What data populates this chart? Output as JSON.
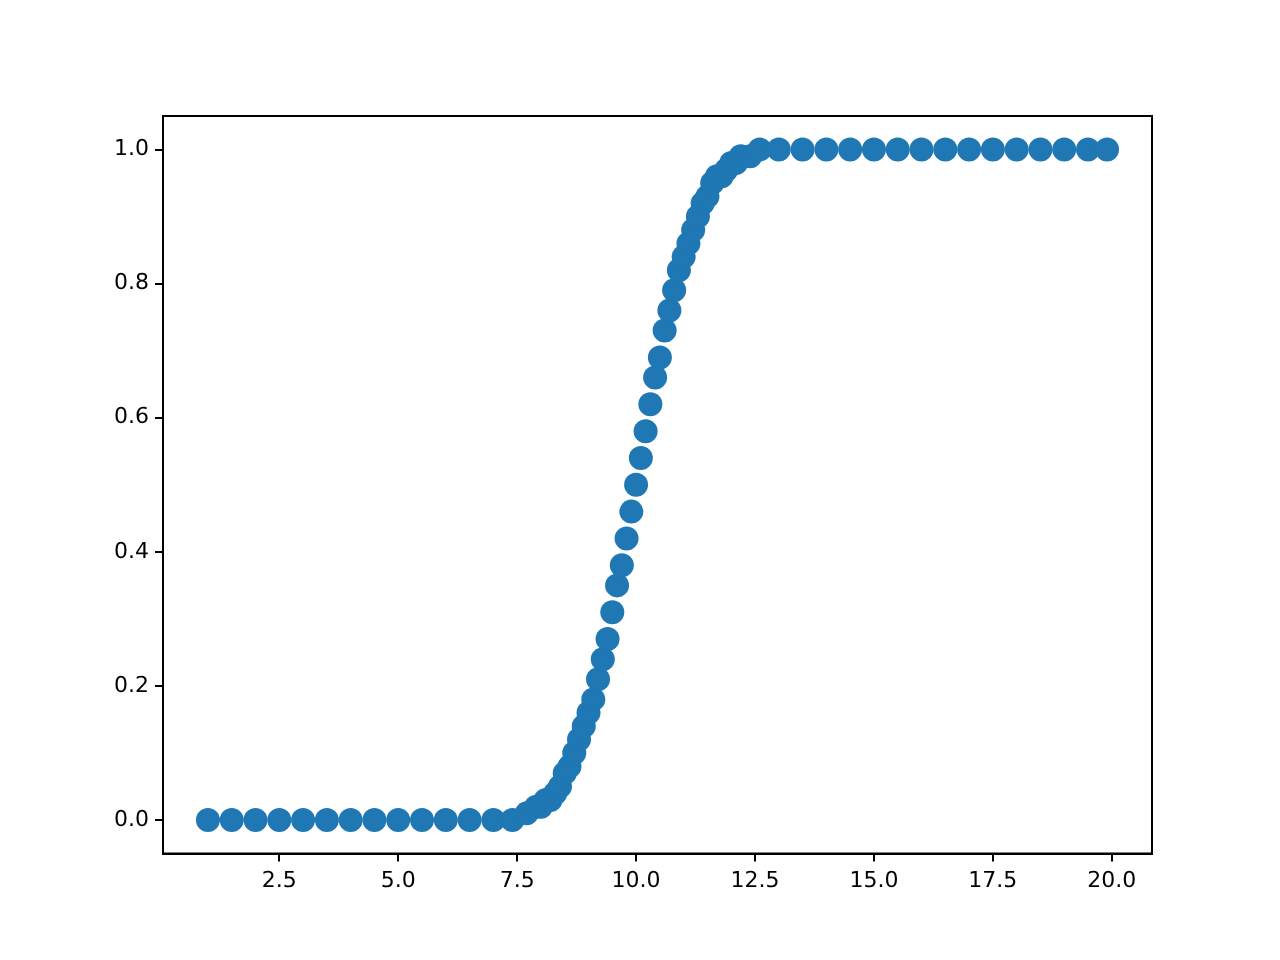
{
  "chart_data": {
    "type": "scatter",
    "color": "#1f77b4",
    "marker": "circle",
    "grid": false,
    "legend": false,
    "x": [
      1.0,
      1.5,
      2.0,
      2.5,
      3.0,
      3.5,
      4.0,
      4.5,
      5.0,
      5.5,
      6.0,
      6.5,
      7.0,
      7.4,
      7.7,
      7.9,
      8.0,
      8.1,
      8.2,
      8.3,
      8.4,
      8.5,
      8.6,
      8.7,
      8.8,
      8.9,
      9.0,
      9.1,
      9.2,
      9.3,
      9.4,
      9.5,
      9.6,
      9.7,
      9.8,
      9.9,
      10.0,
      10.1,
      10.2,
      10.3,
      10.4,
      10.5,
      10.6,
      10.7,
      10.8,
      10.9,
      11.0,
      11.1,
      11.2,
      11.3,
      11.4,
      11.5,
      11.6,
      11.7,
      11.8,
      11.9,
      12.0,
      12.1,
      12.2,
      12.4,
      12.6,
      13.0,
      13.5,
      14.0,
      14.5,
      15.0,
      15.5,
      16.0,
      16.5,
      17.0,
      17.5,
      18.0,
      18.5,
      19.0,
      19.5,
      19.9
    ],
    "values": [
      0,
      0,
      0,
      0,
      0,
      0,
      0,
      0,
      0,
      0,
      0,
      0,
      0,
      0,
      0.01,
      0.02,
      0.02,
      0.03,
      0.03,
      0.04,
      0.05,
      0.07,
      0.08,
      0.1,
      0.12,
      0.14,
      0.16,
      0.18,
      0.21,
      0.24,
      0.27,
      0.31,
      0.35,
      0.38,
      0.42,
      0.46,
      0.5,
      0.54,
      0.58,
      0.62,
      0.66,
      0.69,
      0.73,
      0.76,
      0.79,
      0.82,
      0.84,
      0.86,
      0.88,
      0.9,
      0.92,
      0.93,
      0.95,
      0.96,
      0.96,
      0.97,
      0.98,
      0.98,
      0.99,
      0.99,
      1,
      1,
      1,
      1,
      1,
      1,
      1,
      1,
      1,
      1,
      1,
      1,
      1,
      1,
      1,
      1
    ],
    "xlim": [
      0.055,
      20.845
    ],
    "ylim": [
      -0.05,
      1.05
    ],
    "xticks": [
      2.5,
      {
        "value": 5,
        "label": "5.0"
      },
      7.5,
      {
        "value": 10,
        "label": "10.0"
      },
      12.5,
      {
        "value": 15,
        "label": "15.0"
      },
      17.5,
      {
        "value": 20,
        "label": "20.0"
      }
    ],
    "yticks": [
      {
        "value": 0,
        "label": "0.0"
      },
      {
        "value": 0.2,
        "label": "0.2"
      },
      {
        "value": 0.4,
        "label": "0.4"
      },
      {
        "value": 0.6,
        "label": "0.6"
      },
      {
        "value": 0.8,
        "label": "0.8"
      },
      {
        "value": 1,
        "label": "1.0"
      }
    ]
  }
}
